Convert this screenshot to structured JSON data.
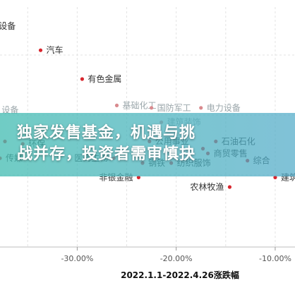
{
  "banner": {
    "line1": "独家发售基金，机遇与挑",
    "line2": "战并存，投资者需审慎抉"
  },
  "chart_data": {
    "type": "scatter",
    "title": "",
    "caption": "2022.1.1-2022.4.26涨跌幅",
    "xlabel": "2022.1.1-2022.4.26涨跌幅",
    "ylabel": "",
    "x_ticks": [
      "-30.00%",
      "-20.00%",
      "-10.00%"
    ],
    "xlim": [
      -37.8,
      -8.0
    ],
    "ylim": [
      0,
      100
    ],
    "grid": true,
    "point_color": "#d8262e",
    "points": [
      {
        "label": "设备",
        "x": -38.5,
        "y": 92,
        "label_side": "right",
        "faded": false
      },
      {
        "label": "汽车",
        "x": -33.7,
        "y": 82,
        "label_side": "right",
        "faded": false
      },
      {
        "label": "有色金属",
        "x": -29.5,
        "y": 70,
        "label_side": "right",
        "faded": false
      },
      {
        "label": "基础化工",
        "x": -26.0,
        "y": 59,
        "label_side": "right",
        "faded": true
      },
      {
        "label": "设备",
        "x": -38.2,
        "y": 57,
        "label_side": "right",
        "faded": true
      },
      {
        "label": "环保",
        "x": -35.5,
        "y": 43,
        "label_side": "right",
        "faded": false
      },
      {
        "label": "传媒",
        "x": -37.8,
        "y": 37,
        "label_side": "right",
        "faded": false
      },
      {
        "label": "医药生物",
        "x": -26.3,
        "y": 37,
        "label_side": "left",
        "faded": false
      },
      {
        "label": "钢铁",
        "x": -23.4,
        "y": 35,
        "label_side": "right",
        "faded": false
      },
      {
        "label": "纺织服饰",
        "x": -20.5,
        "y": 35,
        "label_side": "right",
        "faded": false
      },
      {
        "label": "公用事业",
        "x": -22.7,
        "y": 44,
        "label_side": "right",
        "faded": false
      },
      {
        "label": "建筑装饰",
        "x": -21.5,
        "y": 52,
        "label_side": "right",
        "faded": true
      },
      {
        "label": "国防军工",
        "x": -22.5,
        "y": 58,
        "label_side": "right",
        "faded": true
      },
      {
        "label": "电力设备",
        "x": -17.5,
        "y": 58,
        "label_side": "right",
        "faded": true
      },
      {
        "label": "石油石化",
        "x": -16.0,
        "y": 44,
        "label_side": "right",
        "faded": false
      },
      {
        "label": "商贸零售",
        "x": -16.8,
        "y": 39,
        "label_side": "right",
        "faded": false
      },
      {
        "label": "综合",
        "x": -12.8,
        "y": 36,
        "label_side": "right",
        "faded": false
      },
      {
        "label": "非银金融",
        "x": -23.8,
        "y": 29,
        "label_side": "left",
        "faded": false
      },
      {
        "label": "农林牧渔",
        "x": -14.6,
        "y": 25,
        "label_side": "left",
        "faded": false
      },
      {
        "label": "建筑",
        "x": -10.0,
        "y": 29,
        "label_side": "right",
        "faded": false
      },
      {
        "label": "",
        "x": -37.3,
        "y": 44,
        "label_side": "right",
        "faded": false
      },
      {
        "label": "",
        "x": -17.3,
        "y": 41,
        "label_side": "right",
        "faded": false
      }
    ]
  }
}
